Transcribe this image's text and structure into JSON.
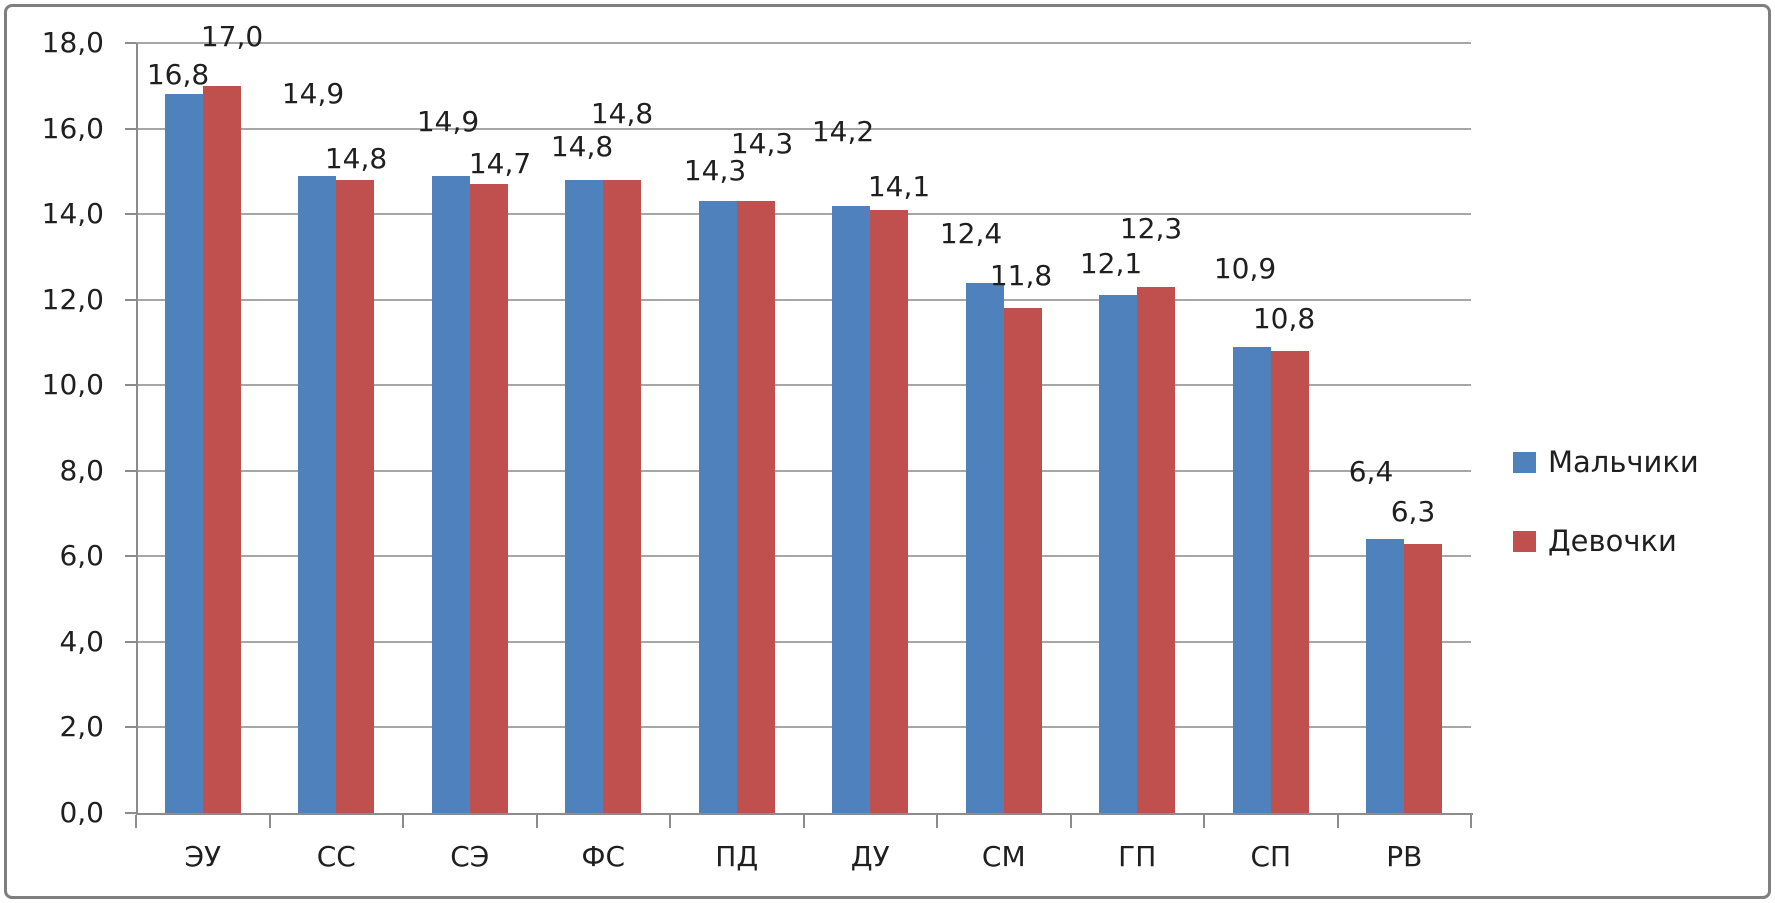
{
  "chart_data": {
    "type": "bar",
    "title": "",
    "xlabel": "",
    "ylabel": "",
    "categories": [
      "ЭУ",
      "СС",
      "СЭ",
      "ФС",
      "ПД",
      "ДУ",
      "СМ",
      "ГП",
      "СП",
      "РВ"
    ],
    "series": [
      {
        "name": "Мальчики",
        "color": "#4f81bd",
        "values": [
          16.8,
          14.9,
          14.9,
          14.8,
          14.3,
          14.2,
          12.4,
          12.1,
          10.9,
          6.4
        ],
        "labels": [
          "16,8",
          "14,9",
          "14,9",
          "14,8",
          "14,3",
          "14,2",
          "12,4",
          "12,1",
          "10,9",
          "6,4"
        ]
      },
      {
        "name": "Девочки",
        "color": "#c0504d",
        "values": [
          17.0,
          14.8,
          14.7,
          14.8,
          14.3,
          14.1,
          11.8,
          12.3,
          10.8,
          6.3
        ],
        "labels": [
          "17,0",
          "14,8",
          "14,7",
          "14,8",
          "14,3",
          "14,1",
          "11,8",
          "12,3",
          "10,8",
          "6,3"
        ]
      }
    ],
    "ylim": [
      0,
      18
    ],
    "ytick_step": 2,
    "yticks_display": [
      "0,0",
      "2,0",
      "4,0",
      "6,0",
      "8,0",
      "10,0",
      "12,0",
      "14,0",
      "16,0",
      "18,0"
    ],
    "decimal_separator": ",",
    "grid": "horizontal",
    "data_labels": "outside-end",
    "legend_position": "right"
  },
  "style_colors": {
    "plot_background": "#ffffff",
    "gridline": "#a6a6a6",
    "axis": "#8c8c8c",
    "text": "#1f1f1f",
    "frame_border": "#7f7f7f"
  }
}
